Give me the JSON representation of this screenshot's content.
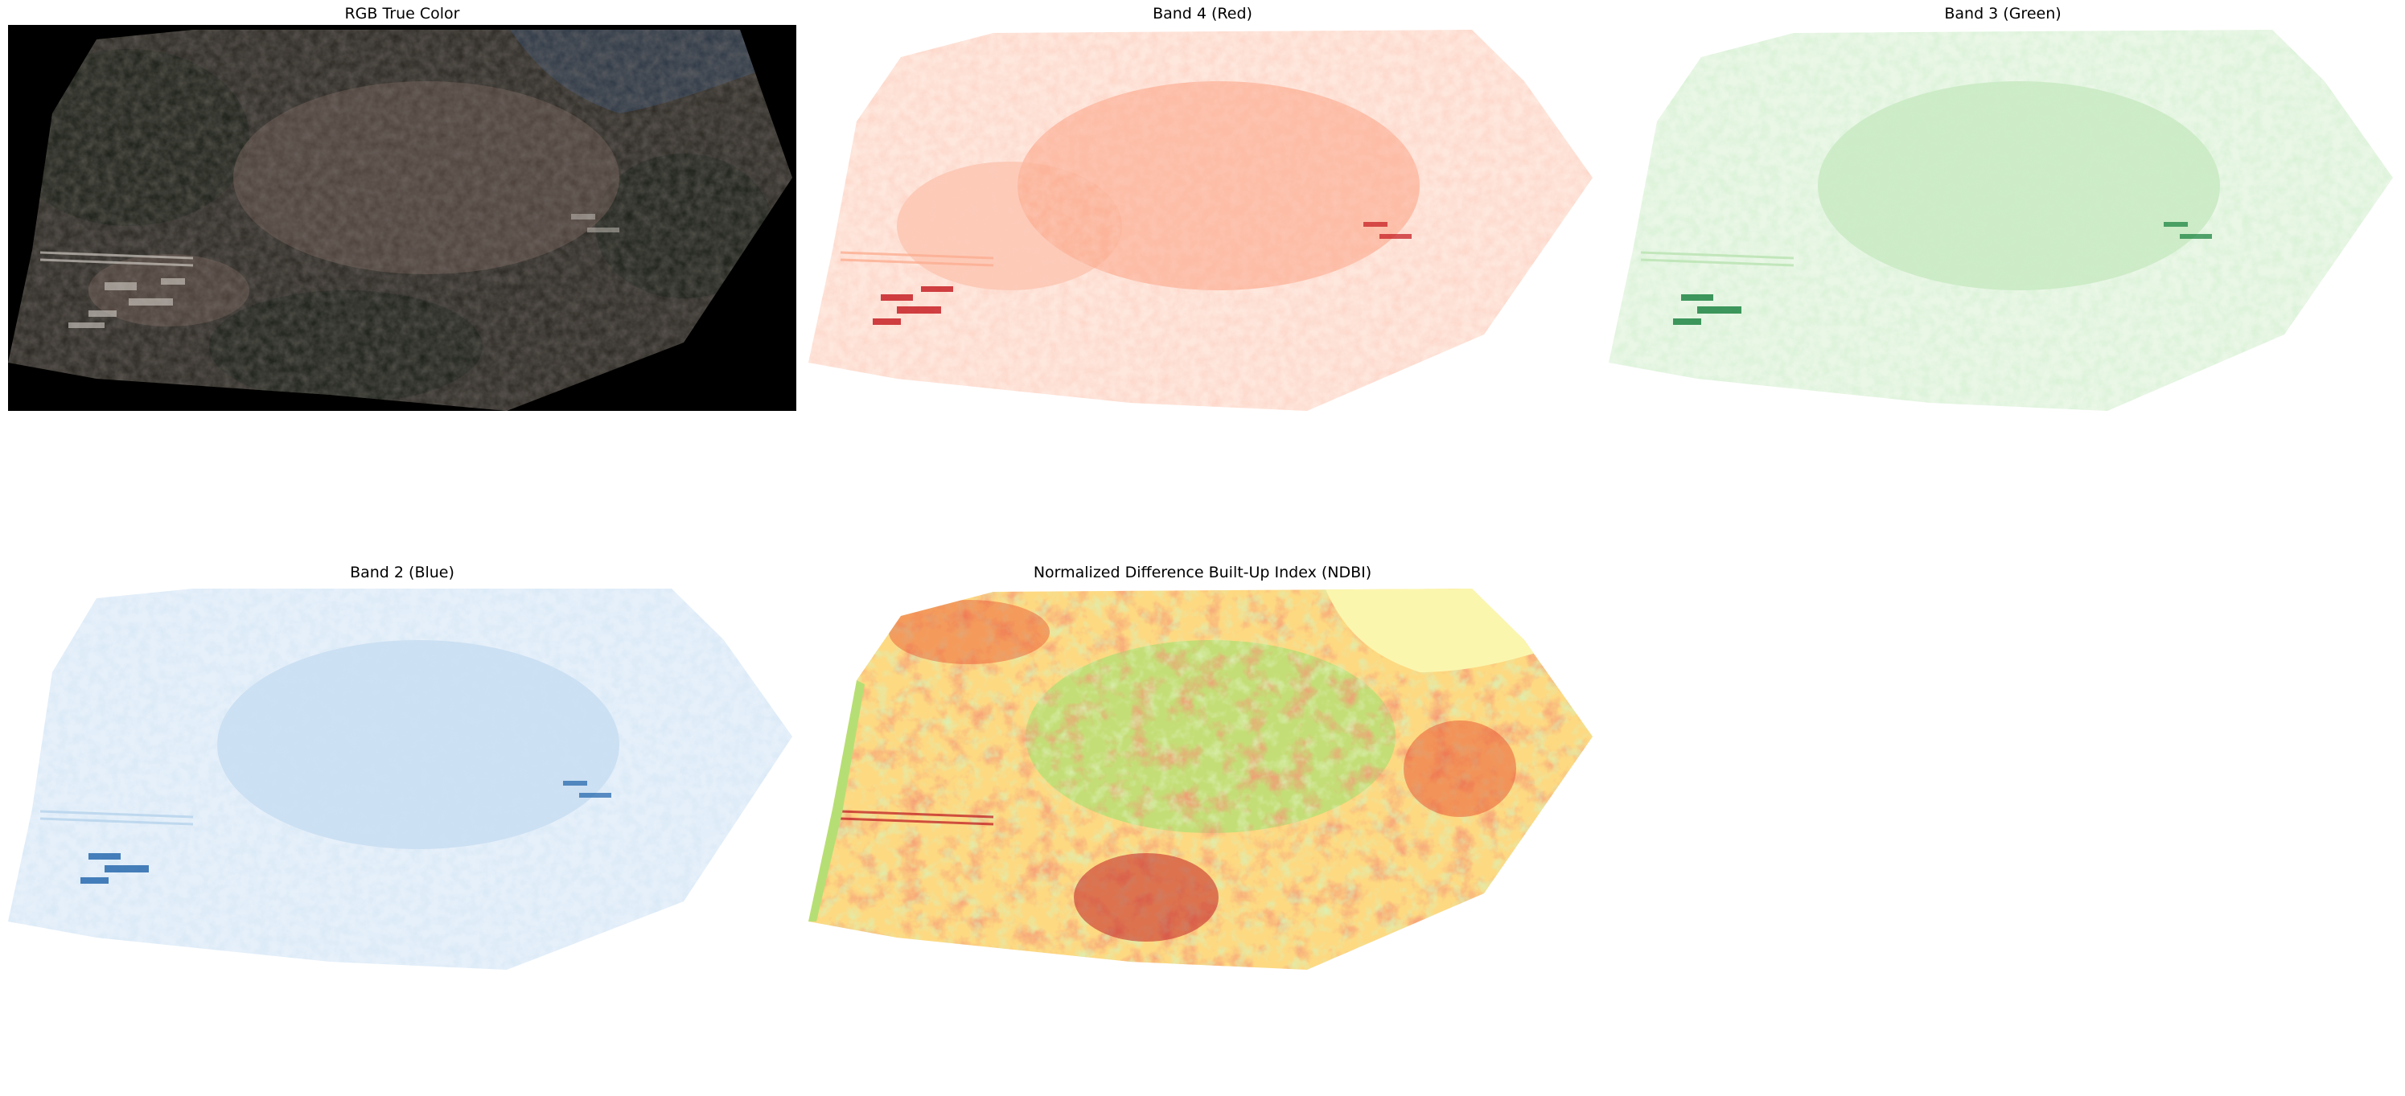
{
  "figure": {
    "panels": [
      {
        "id": "rgb",
        "title": "RGB True Color",
        "colormap": "rgb",
        "colors": {
          "background": "#000000",
          "base": "#2e2b26",
          "urban": "#6b5750",
          "vegetation": "#1c221a",
          "water": "#2f3a48",
          "bright": "#c9c4bd"
        }
      },
      {
        "id": "band4",
        "title": "Band 4 (Red)",
        "colormap": "Reds",
        "colors": {
          "low": "#fee7dd",
          "mid": "#fcae92",
          "high": "#c4151b"
        }
      },
      {
        "id": "band3",
        "title": "Band 3 (Green)",
        "colormap": "Greens",
        "colors": {
          "low": "#eaf7e7",
          "mid": "#b9e3b2",
          "high": "#127f3a"
        }
      },
      {
        "id": "band2",
        "title": "Band 2 (Blue)",
        "colormap": "Blues",
        "colors": {
          "low": "#e6f0fa",
          "mid": "#b6d3ec",
          "high": "#1d62aa"
        }
      },
      {
        "id": "ndbi",
        "title": "Normalized Difference Built-Up Index (NDBI)",
        "colormap": "RdYlGn",
        "colors": {
          "water": "#fbf6ae",
          "low": "#b5df74",
          "mid": "#fdd982",
          "high": "#e8502f",
          "max": "#c11f24"
        }
      }
    ]
  }
}
